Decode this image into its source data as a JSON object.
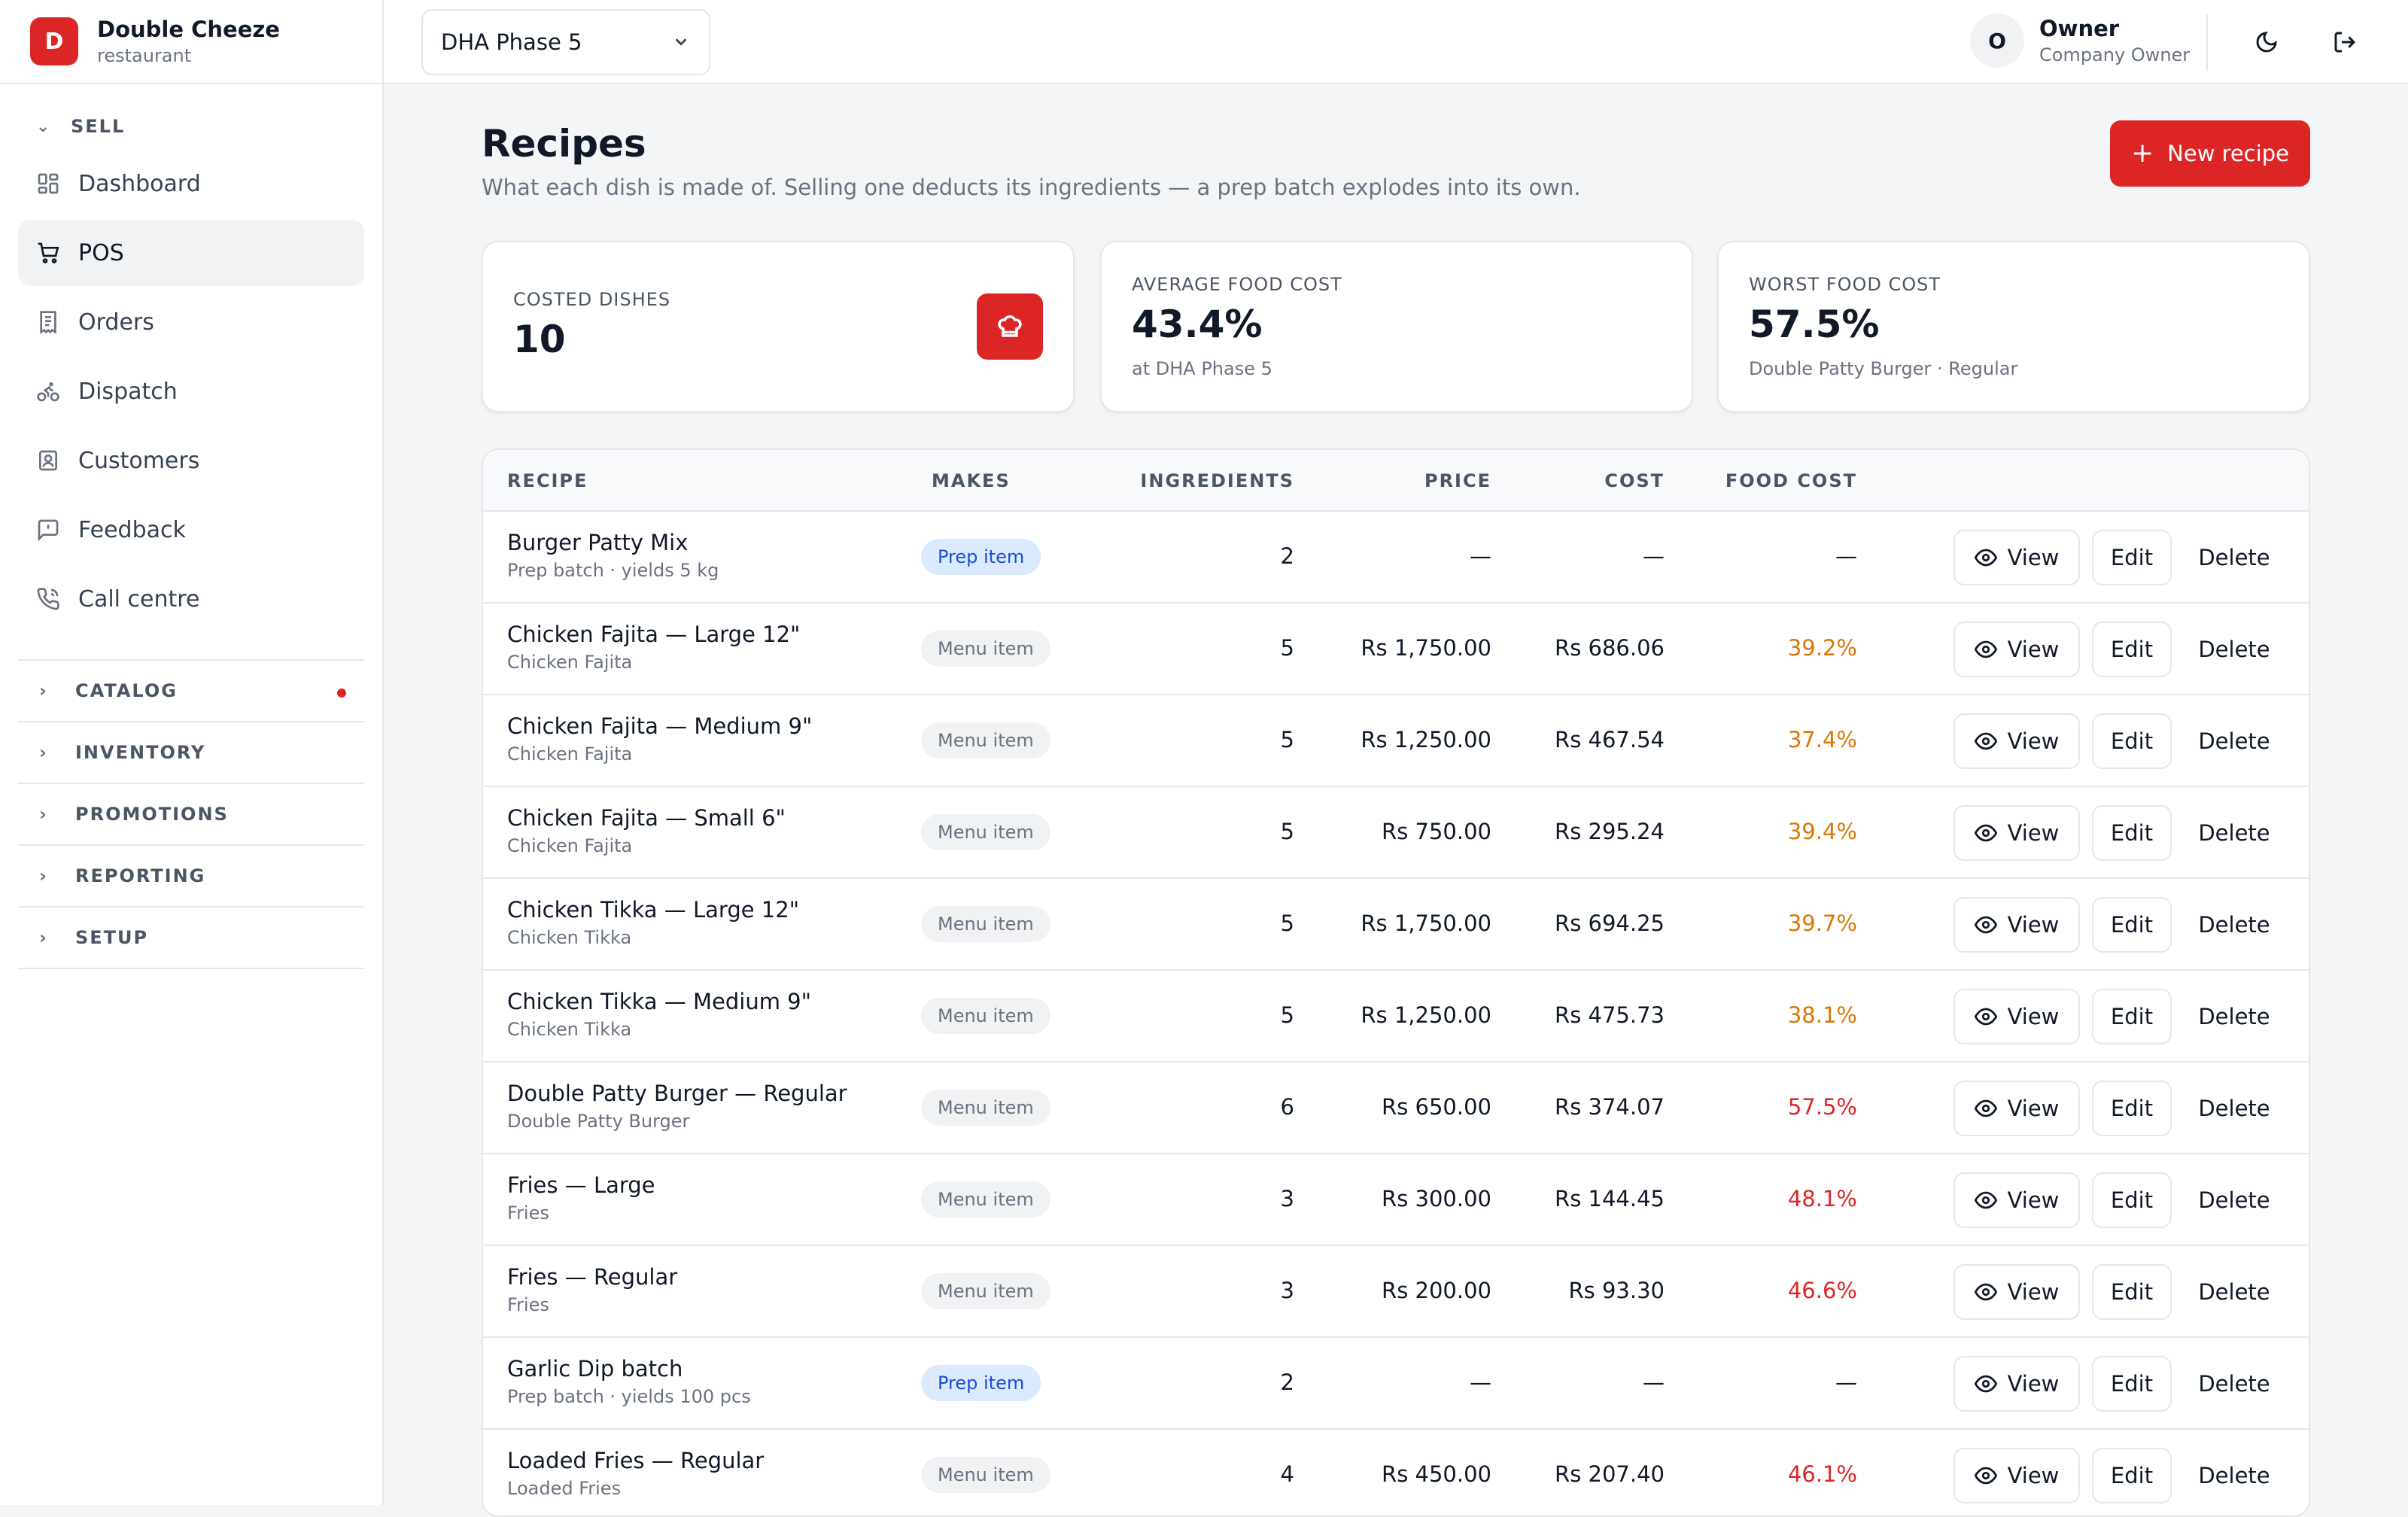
{
  "brand": {
    "initial": "D",
    "name": "Double Cheeze",
    "type": "restaurant"
  },
  "sidebar": {
    "sell_group": "SELL",
    "items": [
      {
        "label": "Dashboard",
        "icon": "dashboard-icon"
      },
      {
        "label": "POS",
        "icon": "cart-icon",
        "active": true
      },
      {
        "label": "Orders",
        "icon": "receipt-icon"
      },
      {
        "label": "Dispatch",
        "icon": "bike-icon"
      },
      {
        "label": "Customers",
        "icon": "contact-icon"
      },
      {
        "label": "Feedback",
        "icon": "message-alert-icon"
      },
      {
        "label": "Call centre",
        "icon": "phone-icon"
      }
    ],
    "groups": [
      {
        "label": "CATALOG",
        "has_alert": true
      },
      {
        "label": "INVENTORY"
      },
      {
        "label": "PROMOTIONS"
      },
      {
        "label": "REPORTING"
      },
      {
        "label": "SETUP"
      }
    ]
  },
  "topbar": {
    "branch": "DHA Phase 5",
    "user_initial": "O",
    "user_name": "Owner",
    "user_role": "Company Owner"
  },
  "page": {
    "title": "Recipes",
    "subtitle": "What each dish is made of. Selling one deducts its ingredients — a prep batch explodes into its own.",
    "new_button": "New recipe"
  },
  "stats": {
    "costed_label": "COSTED DISHES",
    "costed_value": "10",
    "avg_label": "AVERAGE FOOD COST",
    "avg_value": "43.4%",
    "avg_note": "at DHA Phase 5",
    "worst_label": "WORST FOOD COST",
    "worst_value": "57.5%",
    "worst_note": "Double Patty Burger · Regular"
  },
  "table": {
    "headers": {
      "recipe": "RECIPE",
      "makes": "MAKES",
      "ingredients": "INGREDIENTS",
      "price": "PRICE",
      "cost": "COST",
      "food_cost": "FOOD COST"
    },
    "actions": {
      "view": "View",
      "edit": "Edit",
      "delete": "Delete"
    },
    "rows": [
      {
        "name": "Burger Patty Mix",
        "sub": "Prep batch · yields 5 kg",
        "makes": "Prep item",
        "ingredients": "2",
        "price": "—",
        "cost": "—",
        "food_cost": "—"
      },
      {
        "name": "Chicken Fajita — Large 12\"",
        "sub": "Chicken Fajita",
        "makes": "Menu item",
        "ingredients": "5",
        "price": "Rs 1,750.00",
        "cost": "Rs 686.06",
        "food_cost": "39.2%"
      },
      {
        "name": "Chicken Fajita — Medium 9\"",
        "sub": "Chicken Fajita",
        "makes": "Menu item",
        "ingredients": "5",
        "price": "Rs 1,250.00",
        "cost": "Rs 467.54",
        "food_cost": "37.4%"
      },
      {
        "name": "Chicken Fajita — Small 6\"",
        "sub": "Chicken Fajita",
        "makes": "Menu item",
        "ingredients": "5",
        "price": "Rs 750.00",
        "cost": "Rs 295.24",
        "food_cost": "39.4%"
      },
      {
        "name": "Chicken Tikka — Large 12\"",
        "sub": "Chicken Tikka",
        "makes": "Menu item",
        "ingredients": "5",
        "price": "Rs 1,750.00",
        "cost": "Rs 694.25",
        "food_cost": "39.7%"
      },
      {
        "name": "Chicken Tikka — Medium 9\"",
        "sub": "Chicken Tikka",
        "makes": "Menu item",
        "ingredients": "5",
        "price": "Rs 1,250.00",
        "cost": "Rs 475.73",
        "food_cost": "38.1%"
      },
      {
        "name": "Double Patty Burger — Regular",
        "sub": "Double Patty Burger",
        "makes": "Menu item",
        "ingredients": "6",
        "price": "Rs 650.00",
        "cost": "Rs 374.07",
        "food_cost": "57.5%"
      },
      {
        "name": "Fries — Large",
        "sub": "Fries",
        "makes": "Menu item",
        "ingredients": "3",
        "price": "Rs 300.00",
        "cost": "Rs 144.45",
        "food_cost": "48.1%"
      },
      {
        "name": "Fries — Regular",
        "sub": "Fries",
        "makes": "Menu item",
        "ingredients": "3",
        "price": "Rs 200.00",
        "cost": "Rs 93.30",
        "food_cost": "46.6%"
      },
      {
        "name": "Garlic Dip batch",
        "sub": "Prep batch · yields 100 pcs",
        "makes": "Prep item",
        "ingredients": "2",
        "price": "—",
        "cost": "—",
        "food_cost": "—"
      },
      {
        "name": "Loaded Fries — Regular",
        "sub": "Loaded Fries",
        "makes": "Menu item",
        "ingredients": "4",
        "price": "Rs 450.00",
        "cost": "Rs 207.40",
        "food_cost": "46.1%"
      }
    ]
  },
  "colors": {
    "accent": "#dc2626",
    "food_cost_warn": "#d97706",
    "food_cost_bad": "#dc2626",
    "prep_badge": "#dbeafe"
  }
}
